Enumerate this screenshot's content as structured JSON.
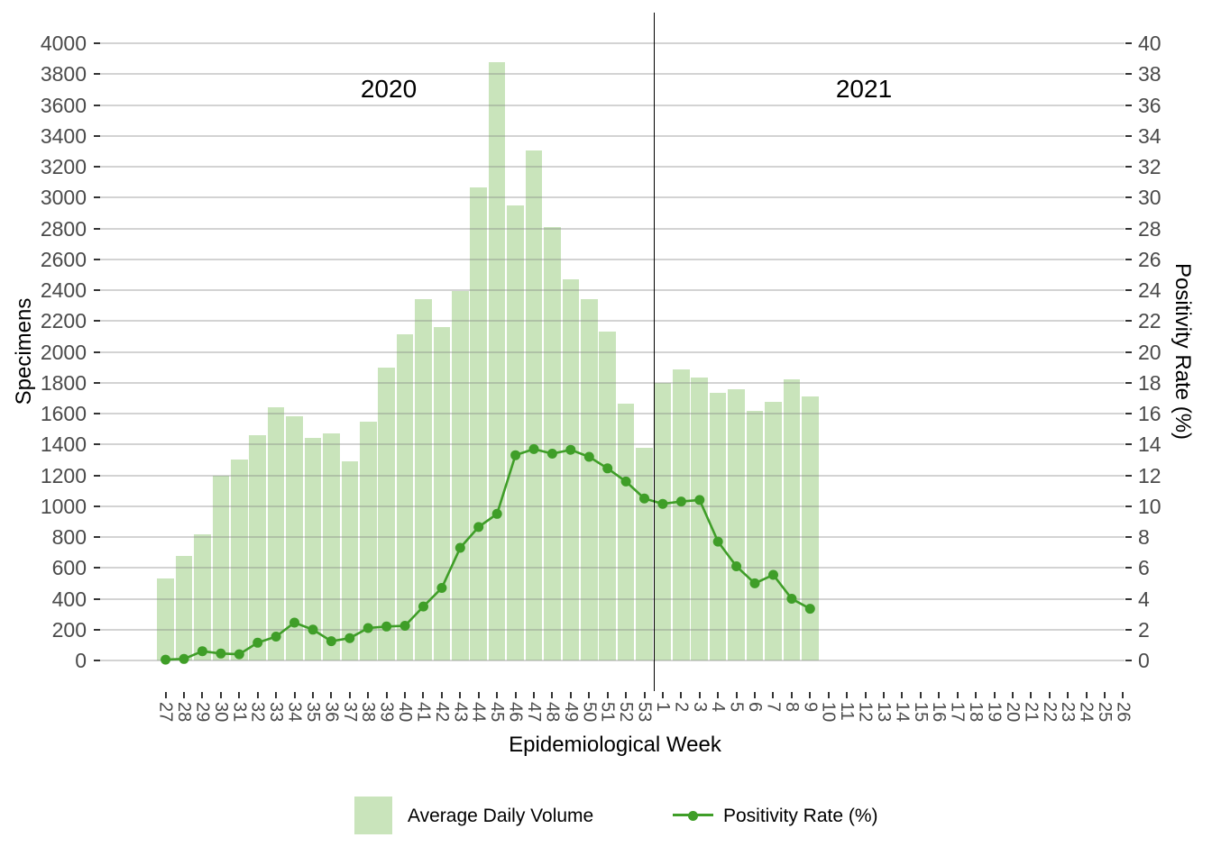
{
  "chart_data": {
    "type": "bar",
    "subtype": "dual-axis bar+line",
    "title": "",
    "categories": [
      "27",
      "28",
      "29",
      "30",
      "31",
      "32",
      "33",
      "34",
      "35",
      "36",
      "37",
      "38",
      "39",
      "40",
      "41",
      "42",
      "43",
      "44",
      "45",
      "46",
      "47",
      "48",
      "49",
      "50",
      "51",
      "52",
      "53",
      "1",
      "2",
      "3",
      "4",
      "5",
      "6",
      "7",
      "8",
      "9",
      "10",
      "11",
      "12",
      "13",
      "14",
      "15",
      "16",
      "17",
      "18",
      "19",
      "20",
      "21",
      "22",
      "23",
      "24",
      "25",
      "26"
    ],
    "divider_after_index": 26,
    "series": [
      {
        "name": "Average Daily Volume",
        "type": "bar",
        "axis": "left",
        "values": [
          530,
          675,
          815,
          1200,
          1300,
          1460,
          1640,
          1585,
          1445,
          1470,
          1290,
          1550,
          1900,
          2115,
          2340,
          2160,
          2395,
          3065,
          3875,
          2950,
          3305,
          2810,
          2470,
          2340,
          2130,
          1665,
          1380,
          1800,
          1885,
          1835,
          1735,
          1755,
          1620,
          1675,
          1820,
          1710,
          null,
          null,
          null,
          null,
          null,
          null,
          null,
          null,
          null,
          null,
          null,
          null,
          null,
          null,
          null,
          null,
          null
        ]
      },
      {
        "name": "Positivity Rate (%)",
        "type": "line",
        "axis": "right",
        "values": [
          0.05,
          0.1,
          0.6,
          0.45,
          0.4,
          1.15,
          1.55,
          2.45,
          2.0,
          1.25,
          1.45,
          2.1,
          2.2,
          2.25,
          3.5,
          4.7,
          7.3,
          8.65,
          9.5,
          13.3,
          13.7,
          13.4,
          13.65,
          13.2,
          12.45,
          11.6,
          10.5,
          10.15,
          10.3,
          10.4,
          7.7,
          6.1,
          5.0,
          5.55,
          4.0,
          3.35,
          null,
          null,
          null,
          null,
          null,
          null,
          null,
          null,
          null,
          null,
          null,
          null,
          null,
          null,
          null,
          null,
          null
        ]
      }
    ],
    "axes": {
      "left": {
        "title": "Specimens",
        "min": 0,
        "max": 4000,
        "ticks": [
          0,
          200,
          400,
          600,
          800,
          1000,
          1200,
          1400,
          1600,
          1800,
          2000,
          2200,
          2400,
          2600,
          2800,
          3000,
          3200,
          3400,
          3600,
          3800,
          4000
        ]
      },
      "right": {
        "title": "Positivity Rate (%)",
        "min": 0,
        "max": 40,
        "ticks": [
          0,
          2,
          4,
          6,
          8,
          10,
          12,
          14,
          16,
          18,
          20,
          22,
          24,
          26,
          28,
          30,
          32,
          34,
          36,
          38,
          40
        ]
      },
      "x": {
        "title": "Epidemiological Week"
      }
    },
    "annotations": {
      "year_left": "2020",
      "year_right": "2021"
    },
    "legend": [
      {
        "label": "Average Daily Volume",
        "glyph": "square"
      },
      {
        "label": "Positivity Rate (%)",
        "glyph": "line-dot"
      }
    ],
    "grid": "horizontal-major",
    "legend_position": "bottom"
  },
  "colors": {
    "bar_fill": "#c9e4bb",
    "line": "#3f9e28",
    "gridline": "rgba(125,125,125,0.34)",
    "divider": "#000000",
    "tick_label": "#4a4a4a",
    "text": "#000000",
    "background": "#ffffff"
  }
}
